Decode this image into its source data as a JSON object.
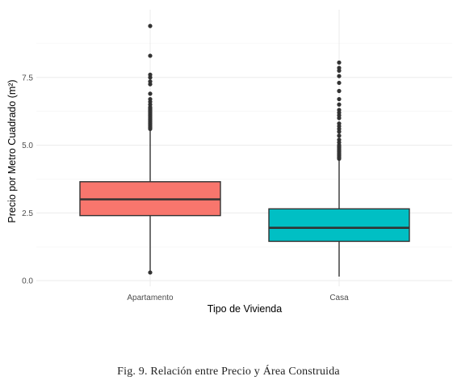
{
  "caption": "Fig. 9.  Relación entre Precio y Área Construida",
  "chart_data": {
    "type": "box",
    "xlabel": "Tipo de Vivienda",
    "ylabel": "Precio por Metro Cuadrado (m²)",
    "ylim": [
      -0.3,
      10.0
    ],
    "yticks": [
      0.0,
      2.5,
      5.0,
      7.5
    ],
    "ytick_labels": [
      "0.0",
      "2.5",
      "5.0",
      "7.5"
    ],
    "grid": true,
    "legend": "none",
    "categories": [
      "Apartamento",
      "Casa"
    ],
    "boxes": [
      {
        "category": "Apartamento",
        "color": "#F8766D",
        "whisker_low": 0.35,
        "q1": 2.4,
        "median": 3.0,
        "q3": 3.65,
        "whisker_high": 5.55,
        "outliers": [
          0.3,
          5.6,
          5.65,
          5.7,
          5.75,
          5.8,
          5.85,
          5.9,
          5.95,
          6.0,
          6.05,
          6.1,
          6.15,
          6.2,
          6.25,
          6.3,
          6.35,
          6.4,
          6.5,
          6.6,
          6.7,
          6.9,
          7.25,
          7.35,
          7.5,
          7.6,
          8.3,
          9.4
        ]
      },
      {
        "category": "Casa",
        "color": "#00BFC4",
        "whisker_low": 0.15,
        "q1": 1.45,
        "median": 1.95,
        "q3": 2.65,
        "whisker_high": 4.45,
        "outliers": [
          4.5,
          4.55,
          4.6,
          4.65,
          4.7,
          4.75,
          4.8,
          4.85,
          4.9,
          4.95,
          5.0,
          5.1,
          5.2,
          5.35,
          5.5,
          5.6,
          5.7,
          5.8,
          6.0,
          6.1,
          6.2,
          6.3,
          6.5,
          6.7,
          7.0,
          7.3,
          7.55,
          7.75,
          7.85,
          8.05
        ]
      }
    ]
  }
}
